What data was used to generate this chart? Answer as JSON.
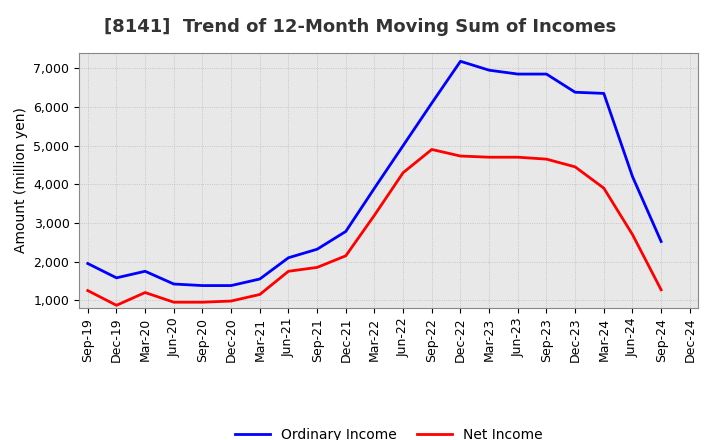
{
  "title": "[8141]  Trend of 12-Month Moving Sum of Incomes",
  "ylabel": "Amount (million yen)",
  "x_labels": [
    "Sep-19",
    "Dec-19",
    "Mar-20",
    "Jun-20",
    "Sep-20",
    "Dec-20",
    "Mar-21",
    "Jun-21",
    "Sep-21",
    "Dec-21",
    "Mar-22",
    "Jun-22",
    "Sep-22",
    "Dec-22",
    "Mar-23",
    "Jun-23",
    "Sep-23",
    "Dec-23",
    "Mar-24",
    "Jun-24",
    "Sep-24",
    "Dec-24"
  ],
  "ordinary_income": [
    1950,
    1580,
    1750,
    1420,
    1380,
    1380,
    1550,
    2100,
    2320,
    2780,
    3900,
    5000,
    6100,
    7180,
    6950,
    6850,
    6850,
    6380,
    6350,
    4200,
    2520,
    null
  ],
  "net_income": [
    1250,
    870,
    1200,
    950,
    950,
    980,
    1150,
    1750,
    1850,
    2150,
    3200,
    4300,
    4900,
    4730,
    4700,
    4700,
    4650,
    4450,
    3900,
    2700,
    1270,
    null
  ],
  "ordinary_color": "#0000FF",
  "net_color": "#FF0000",
  "line_width": 2.0,
  "ylim": [
    800,
    7400
  ],
  "yticks": [
    1000,
    2000,
    3000,
    4000,
    5000,
    6000,
    7000
  ],
  "plot_bg_color": "#E8E8E8",
  "fig_bg_color": "#FFFFFF",
  "grid_color": "#BBBBBB",
  "title_color": "#333333",
  "title_fontsize": 13,
  "axis_label_fontsize": 10,
  "tick_fontsize": 9,
  "legend_fontsize": 10
}
